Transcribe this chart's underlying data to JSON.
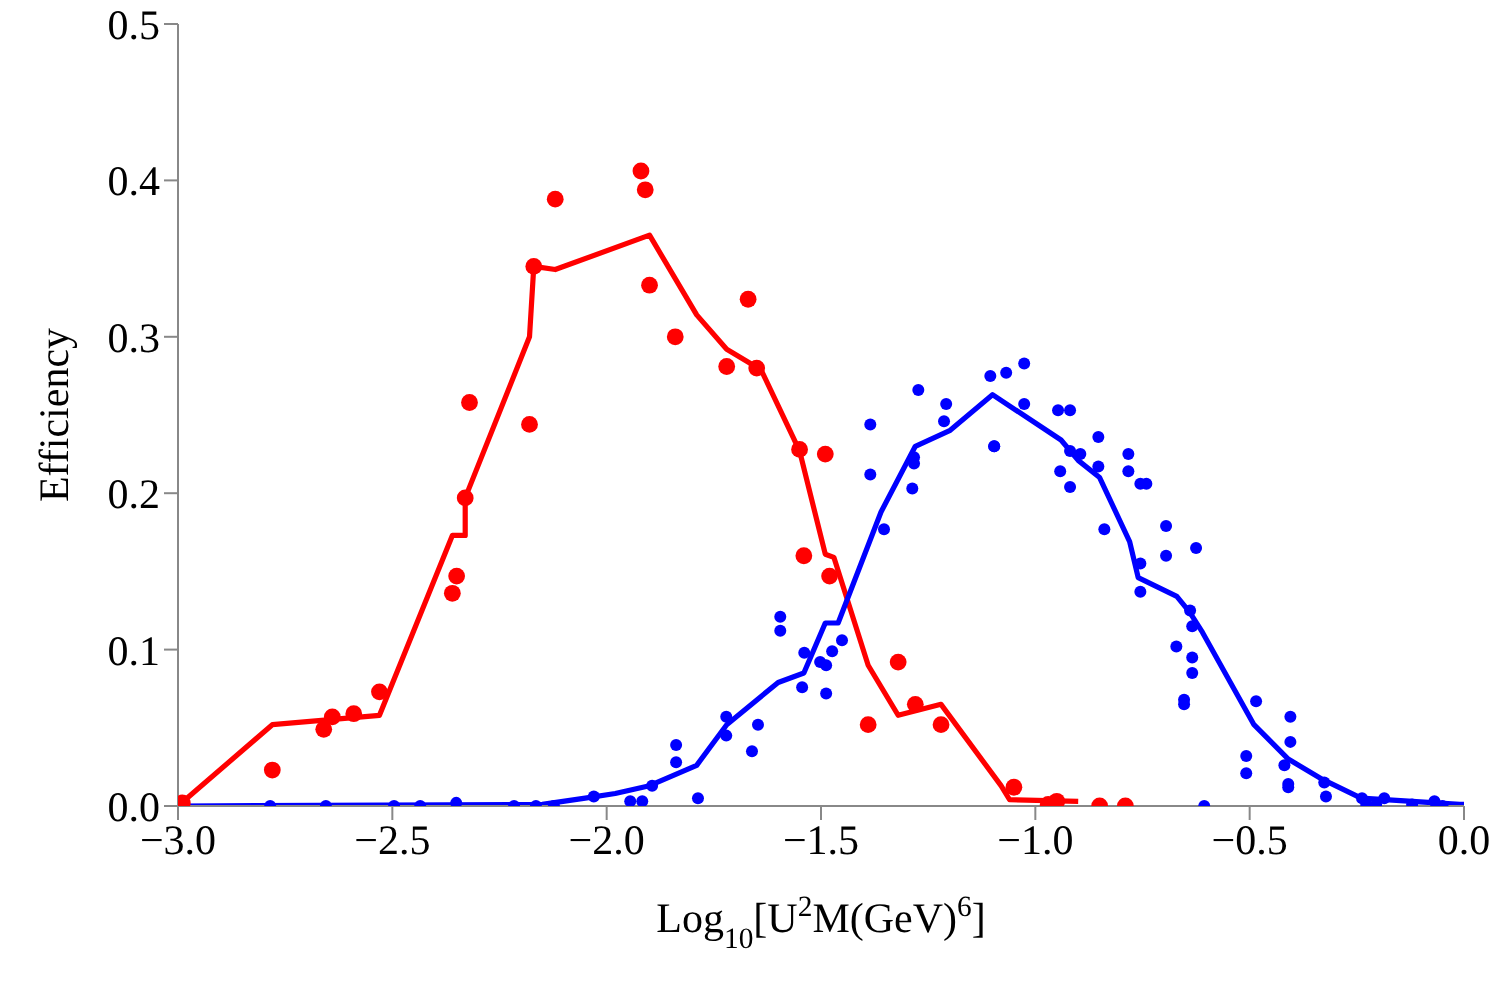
{
  "chart_data": {
    "type": "scatter",
    "xlabel": "Log$_{10}$[U$^{2}$M(GeV)$^{6}$]",
    "ylabel": "Efficiency",
    "xlim": [
      -3,
      0
    ],
    "ylim": [
      0,
      0.5
    ],
    "xticks": [
      {
        "value": -3,
        "label": "−3.0"
      },
      {
        "value": -2.5,
        "label": "−2.5"
      },
      {
        "value": -2,
        "label": "−2.0"
      },
      {
        "value": -1.5,
        "label": "−1.5"
      },
      {
        "value": -1,
        "label": "−1.0"
      },
      {
        "value": -0.5,
        "label": "−0.5"
      },
      {
        "value": 0,
        "label": "0.0"
      }
    ],
    "yticks": [
      {
        "value": 0,
        "label": "0.0"
      },
      {
        "value": 0.1,
        "label": "0.1"
      },
      {
        "value": 0.2,
        "label": "0.2"
      },
      {
        "value": 0.3,
        "label": "0.3"
      },
      {
        "value": 0.4,
        "label": "0.4"
      },
      {
        "value": 0.5,
        "label": "0.5"
      }
    ],
    "grid": false,
    "series": [
      {
        "type": "line",
        "marker": "none",
        "color": "#ff0000",
        "x": [
          -3.0,
          -2.78,
          -2.53,
          -2.36,
          -2.33,
          -2.33,
          -2.18,
          -2.17,
          -2.12,
          -1.9,
          -1.79,
          -1.72,
          -1.64,
          -1.55,
          -1.49,
          -1.47,
          -1.39,
          -1.32,
          -1.22,
          -1.08,
          -1.06,
          -0.9
        ],
        "values": [
          0,
          0.052,
          0.058,
          0.173,
          0.173,
          0.197,
          0.3,
          0.345,
          0.343,
          0.365,
          0.314,
          0.292,
          0.279,
          0.227,
          0.161,
          0.159,
          0.09,
          0.058,
          0.065,
          0.013,
          0.004,
          0.003
        ]
      },
      {
        "marker": "circle",
        "color": "#ff0000",
        "x": [
          -2.99,
          -2.78,
          -2.66,
          -2.64,
          -2.59,
          -2.53,
          -2.36,
          -2.35,
          -2.33,
          -2.32,
          -2.18,
          -2.17,
          -2.12,
          -1.92,
          -1.91,
          -1.9,
          -1.84,
          -1.72,
          -1.67,
          -1.65,
          -1.55,
          -1.49,
          -1.54,
          -1.48,
          -1.32,
          -1.28,
          -1.39,
          -1.22,
          -1.05,
          -0.97,
          -0.95,
          -0.85,
          -0.79
        ],
        "values": [
          0.002,
          0.023,
          0.049,
          0.057,
          0.059,
          0.073,
          0.136,
          0.147,
          0.197,
          0.258,
          0.244,
          0.345,
          0.388,
          0.406,
          0.394,
          0.333,
          0.3,
          0.281,
          0.324,
          0.28,
          0.228,
          0.225,
          0.16,
          0.147,
          0.092,
          0.065,
          0.052,
          0.052,
          0.012,
          0.001,
          0.003,
          0,
          0
        ]
      },
      {
        "type": "line",
        "marker": "none",
        "color": "#0000ff",
        "x": [
          -3.0,
          -2.15,
          -2.05,
          -1.98,
          -1.9,
          -1.79,
          -1.72,
          -1.6,
          -1.54,
          -1.49,
          -1.46,
          -1.36,
          -1.28,
          -1.2,
          -1.1,
          -0.94,
          -0.9,
          -0.85,
          -0.78,
          -0.76,
          -0.67,
          -0.64,
          -0.61,
          -0.49,
          -0.41,
          -0.33,
          -0.24,
          -0.01,
          0.0
        ],
        "values": [
          0,
          0.001,
          0.005,
          0.008,
          0.013,
          0.026,
          0.052,
          0.079,
          0.085,
          0.117,
          0.117,
          0.188,
          0.23,
          0.24,
          0.263,
          0.234,
          0.221,
          0.21,
          0.169,
          0.146,
          0.134,
          0.124,
          0.111,
          0.052,
          0.03,
          0.017,
          0.005,
          0.001,
          0.001
        ]
      },
      {
        "marker": "circle",
        "color": "#0000ff",
        "x": [
          -2.785,
          -2.655,
          -2.496,
          -2.435,
          -2.351,
          -2.216,
          -2.165,
          -2.123,
          -2.03,
          -1.945,
          -1.917,
          -1.894,
          -1.838,
          -1.838,
          -1.787,
          -1.721,
          -1.721,
          -1.647,
          -1.661,
          -1.595,
          -1.595,
          -1.539,
          -1.544,
          -1.502,
          -1.488,
          -1.474,
          -1.488,
          -1.451,
          -1.385,
          -1.385,
          -1.353,
          -1.287,
          -1.283,
          -1.283,
          -1.273,
          -1.208,
          -1.213,
          -1.105,
          -1.096,
          -1.068,
          -1.026,
          -1.096,
          -1.026,
          -0.947,
          -0.919,
          -0.919,
          -0.942,
          -0.919,
          -0.895,
          -0.853,
          -0.853,
          -0.839,
          -0.783,
          -0.783,
          -0.755,
          -0.741,
          -0.755,
          -0.755,
          -0.695,
          -0.695,
          -0.625,
          -0.639,
          -0.634,
          -0.671,
          -0.634,
          -0.634,
          -0.653,
          -0.653,
          -0.606,
          -0.485,
          -0.508,
          -0.508,
          -0.405,
          -0.405,
          -0.419,
          -0.41,
          -0.41,
          -0.326,
          -0.322,
          -0.238,
          -0.228,
          -0.205,
          -0.186,
          -0.121,
          -0.069,
          -0.05
        ],
        "values": [
          0,
          0,
          0,
          0,
          0.002,
          0,
          0,
          0,
          0.006,
          0.003,
          0.003,
          0.013,
          0.039,
          0.028,
          0.005,
          0.057,
          0.045,
          0.052,
          0.035,
          0.121,
          0.112,
          0.098,
          0.076,
          0.092,
          0.09,
          0.099,
          0.072,
          0.106,
          0.244,
          0.212,
          0.177,
          0.203,
          0.223,
          0.219,
          0.266,
          0.257,
          0.246,
          0.275,
          0.23,
          0.277,
          0.283,
          0.23,
          0.257,
          0.253,
          0.253,
          0.204,
          0.214,
          0.227,
          0.225,
          0.236,
          0.217,
          0.177,
          0.225,
          0.214,
          0.206,
          0.206,
          0.137,
          0.155,
          0.179,
          0.16,
          0.165,
          0.125,
          0.115,
          0.102,
          0.095,
          0.085,
          0.068,
          0.065,
          0,
          0.067,
          0.032,
          0.021,
          0.057,
          0.041,
          0.026,
          0.014,
          0.012,
          0.015,
          0.006,
          0.005,
          0.001,
          0.001,
          0.005,
          0.001,
          0.003,
          0
        ]
      }
    ]
  }
}
